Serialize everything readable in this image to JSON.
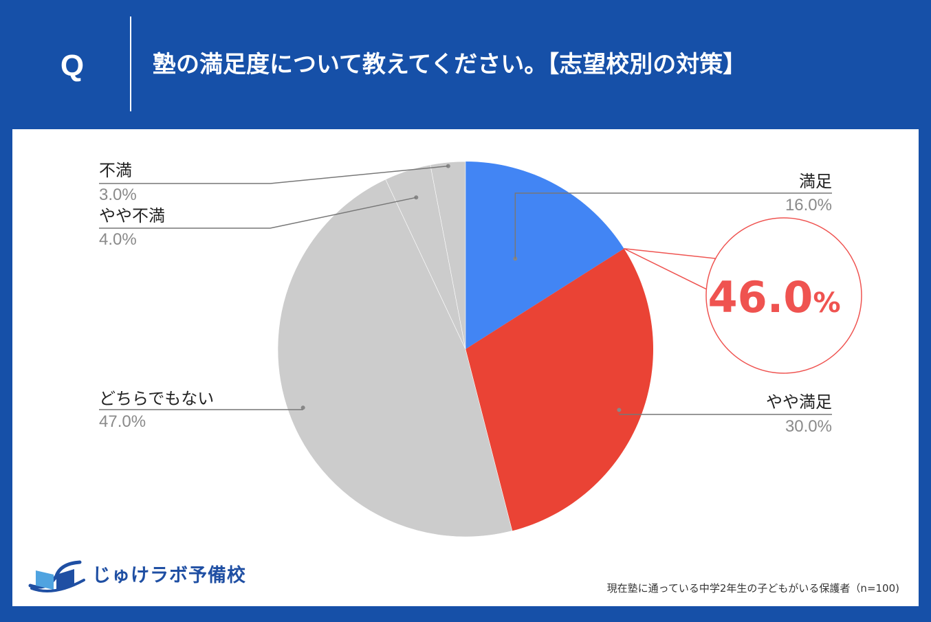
{
  "header": {
    "q_label": "Q",
    "question": "塾の満足度について教えてください。【志望校別の対策】"
  },
  "chart_data": {
    "type": "pie",
    "title": "",
    "start_angle_deg": 0,
    "slices": [
      {
        "name": "満足",
        "value": 16.0,
        "label": "16.0%",
        "color": "#4285f4"
      },
      {
        "name": "やや満足",
        "value": 30.0,
        "label": "30.0%",
        "color": "#ea4335"
      },
      {
        "name": "どちらでもない",
        "value": 47.0,
        "label": "47.0%",
        "color": "#cccccc"
      },
      {
        "name": "やや不満",
        "value": 4.0,
        "label": "4.0%",
        "color": "#cccccc"
      },
      {
        "name": "不満",
        "value": 3.0,
        "label": "3.0%",
        "color": "#cccccc"
      }
    ],
    "callout": {
      "value": "46.0",
      "unit": "%",
      "color": "#ef5350"
    }
  },
  "footer": {
    "logo_text": "じゅけラボ予備校",
    "note": "現在塾に通っている中学2年生の子どもがいる保護者（n=100)"
  }
}
